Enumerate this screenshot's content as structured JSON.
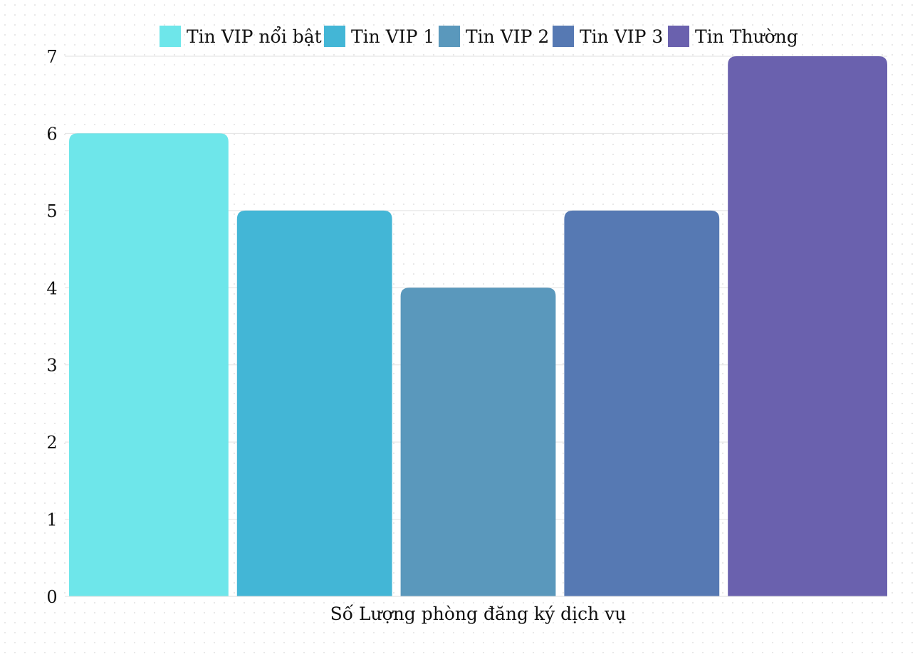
{
  "chart_data": {
    "type": "bar",
    "xlabel": "Số Lượng phòng đăng ký dịch vụ",
    "ylabel": "",
    "ylim": [
      0,
      7
    ],
    "yticks": [
      0,
      1,
      2,
      3,
      4,
      5,
      6,
      7
    ],
    "grid": true,
    "legend_position": "top",
    "series": [
      {
        "name": "Tin VIP nổi bật",
        "values": [
          6
        ],
        "color": "#6ee6ea"
      },
      {
        "name": "Tin VIP 1",
        "values": [
          5
        ],
        "color": "#43b6d6"
      },
      {
        "name": "Tin VIP 2",
        "values": [
          4
        ],
        "color": "#5a98bc"
      },
      {
        "name": "Tin VIP 3",
        "values": [
          5
        ],
        "color": "#5679b3"
      },
      {
        "name": "Tin Thường",
        "values": [
          7
        ],
        "color": "#6a61ae"
      }
    ]
  }
}
